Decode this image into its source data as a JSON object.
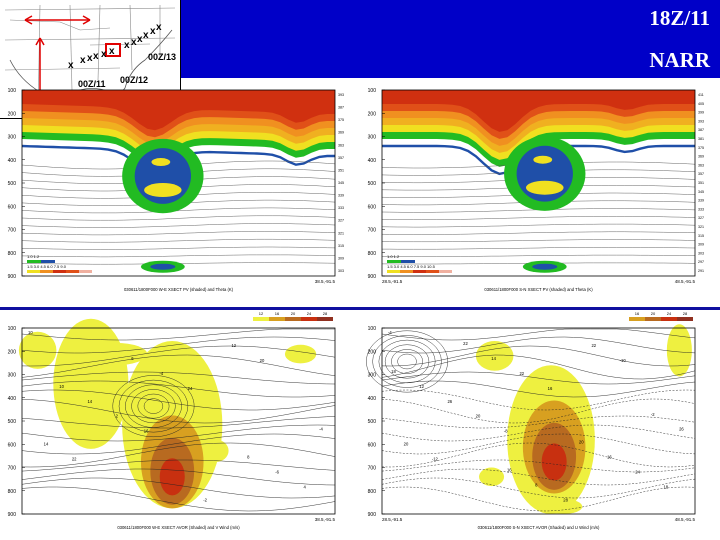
{
  "header": {
    "time_label": "18Z/11",
    "model_label": "NARR"
  },
  "inset_map": {
    "track_marker": "x",
    "labels": [
      "00Z/11",
      "00Z/12",
      "00Z/13"
    ],
    "accent_color": "#e00000"
  },
  "panels": [
    {
      "id": "pv-we",
      "caption": "030611/1800F000 W-E XSECT PV (shaded) and Theta (K)",
      "left_end": "",
      "right_end": "38.5,-91.5",
      "y_ticks": [
        "100",
        "200",
        "300",
        "400",
        "500",
        "600",
        "700",
        "800",
        "900"
      ],
      "right_labels": [
        "393",
        "387",
        "375",
        "369",
        "363",
        "357",
        "351",
        "345",
        "339",
        "333",
        "327",
        "321",
        "315",
        "309",
        "303"
      ],
      "legend_row1": "1.0    1.2",
      "legend_row2": "1.5  3.0  4.5  6.0  7.5  9.0"
    },
    {
      "id": "pv-sn",
      "caption": "030611/1800F000 S-N XSECT PV (shaded) and Theta (K)",
      "left_end": "28.5,-91.5",
      "right_end": "48.5,-91.5",
      "y_ticks": [
        "100",
        "200",
        "300",
        "400",
        "500",
        "600",
        "700",
        "800",
        "900"
      ],
      "right_labels": [
        "411",
        "405",
        "399",
        "393",
        "387",
        "381",
        "375",
        "369",
        "363",
        "357",
        "351",
        "345",
        "339",
        "333",
        "327",
        "321",
        "315",
        "309",
        "303",
        "297",
        "291"
      ],
      "legend_row1": "1.0    1.2",
      "legend_row2": "1.5  3.0  4.5  6.0  7.5  9.0 10.5"
    },
    {
      "id": "av-we",
      "caption": "030611/1800F000 W-E XSECT AVOR (Shaded) and V Wind (m/s)",
      "left_end": "",
      "right_end": "38.5,-91.5",
      "y_ticks": [
        "100",
        "200",
        "300",
        "400",
        "500",
        "600",
        "700",
        "800",
        "900"
      ],
      "legend": [
        "12",
        "16",
        "20",
        "24",
        "28"
      ],
      "contour_labels": [
        "10",
        "16",
        "20",
        "22",
        "24",
        "4",
        "2",
        "12",
        "14",
        "-4",
        "-6",
        "14",
        "-2",
        "-4",
        "6",
        "8",
        "10"
      ]
    },
    {
      "id": "av-sn",
      "caption": "030611/1800F000 S-N XSECT AVOR (Shaded) and U Wind (m/s)",
      "left_end": "28.5,-91.5",
      "right_end": "48.5,-91.5",
      "y_ticks": [
        "100",
        "200",
        "300",
        "400",
        "500",
        "600",
        "700",
        "800",
        "900"
      ],
      "legend": [
        "16",
        "20",
        "24",
        "28"
      ],
      "contour_labels": [
        "-4",
        "-8",
        "-10",
        "-12",
        "16",
        "18",
        "20",
        "22",
        "20",
        "22",
        "24",
        "26",
        "28",
        "26",
        "14",
        "16",
        "12",
        "8",
        "-2",
        "22",
        "20",
        "18",
        "16"
      ]
    }
  ],
  "colors": {
    "banner": "#0000c8",
    "pv_green": "#22bb22",
    "pv_blue": "#1f4fa8",
    "pv_yellow": "#f0e020",
    "pv_orange": "#f09020",
    "pv_red": "#d03010",
    "av_yellow": "#eef040",
    "av_ochre": "#d8a020",
    "av_brown": "#b86a20",
    "av_red": "#c83010"
  }
}
